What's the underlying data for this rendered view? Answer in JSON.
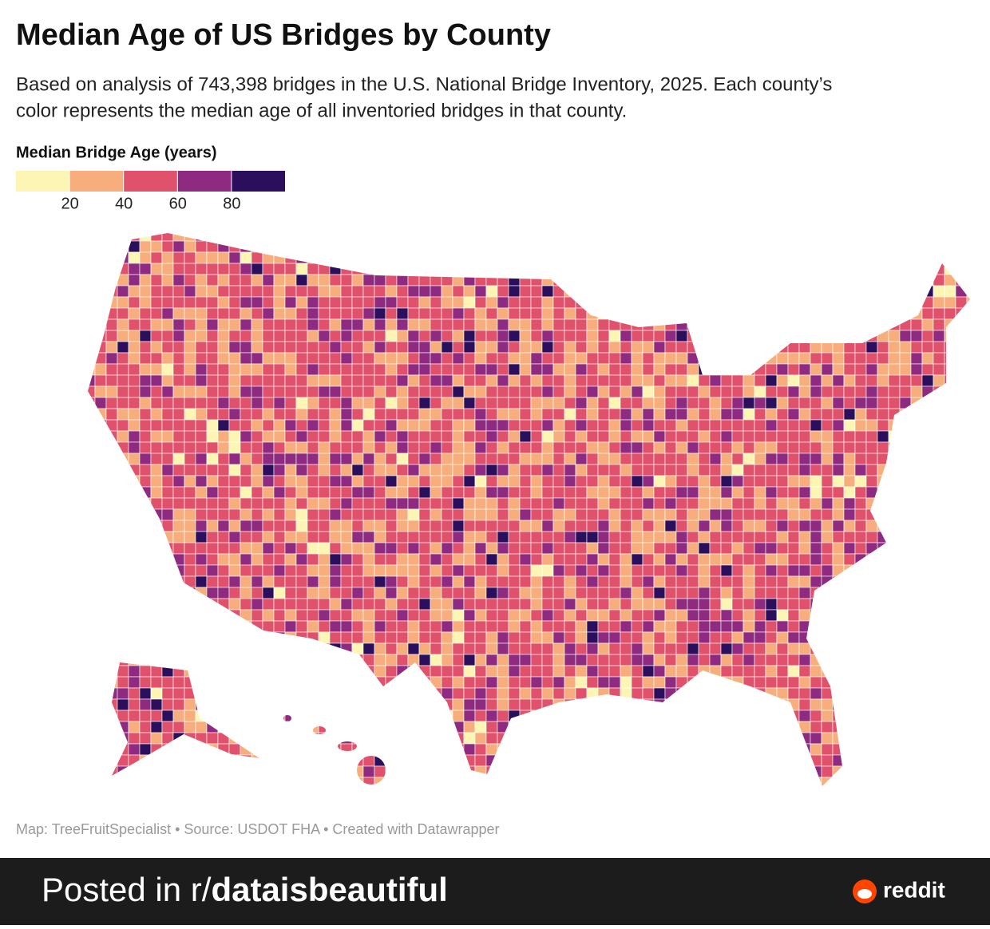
{
  "header": {
    "title": "Median Age of US Bridges by County",
    "subtitle_lines": [
      "Based on analysis of 743,398 bridges in the U.S. National Bridge Inventory, 2025. Each county’s",
      "color represents the median age of all inventoried bridges in that county."
    ]
  },
  "legend": {
    "title": "Median Bridge Age (years)",
    "colors": [
      "#fdf5b4",
      "#f8ae7c",
      "#e0526b",
      "#8e2a80",
      "#2b0f5c"
    ],
    "ticks": [
      20,
      40,
      60,
      80
    ]
  },
  "footer": "Map: TreeFruitSpecialist • Source: USDOT FHA • Created with Datawrapper",
  "banner": {
    "prefix": "Posted in r/",
    "subreddit": "dataisbeautiful",
    "brand": "reddit"
  }
}
